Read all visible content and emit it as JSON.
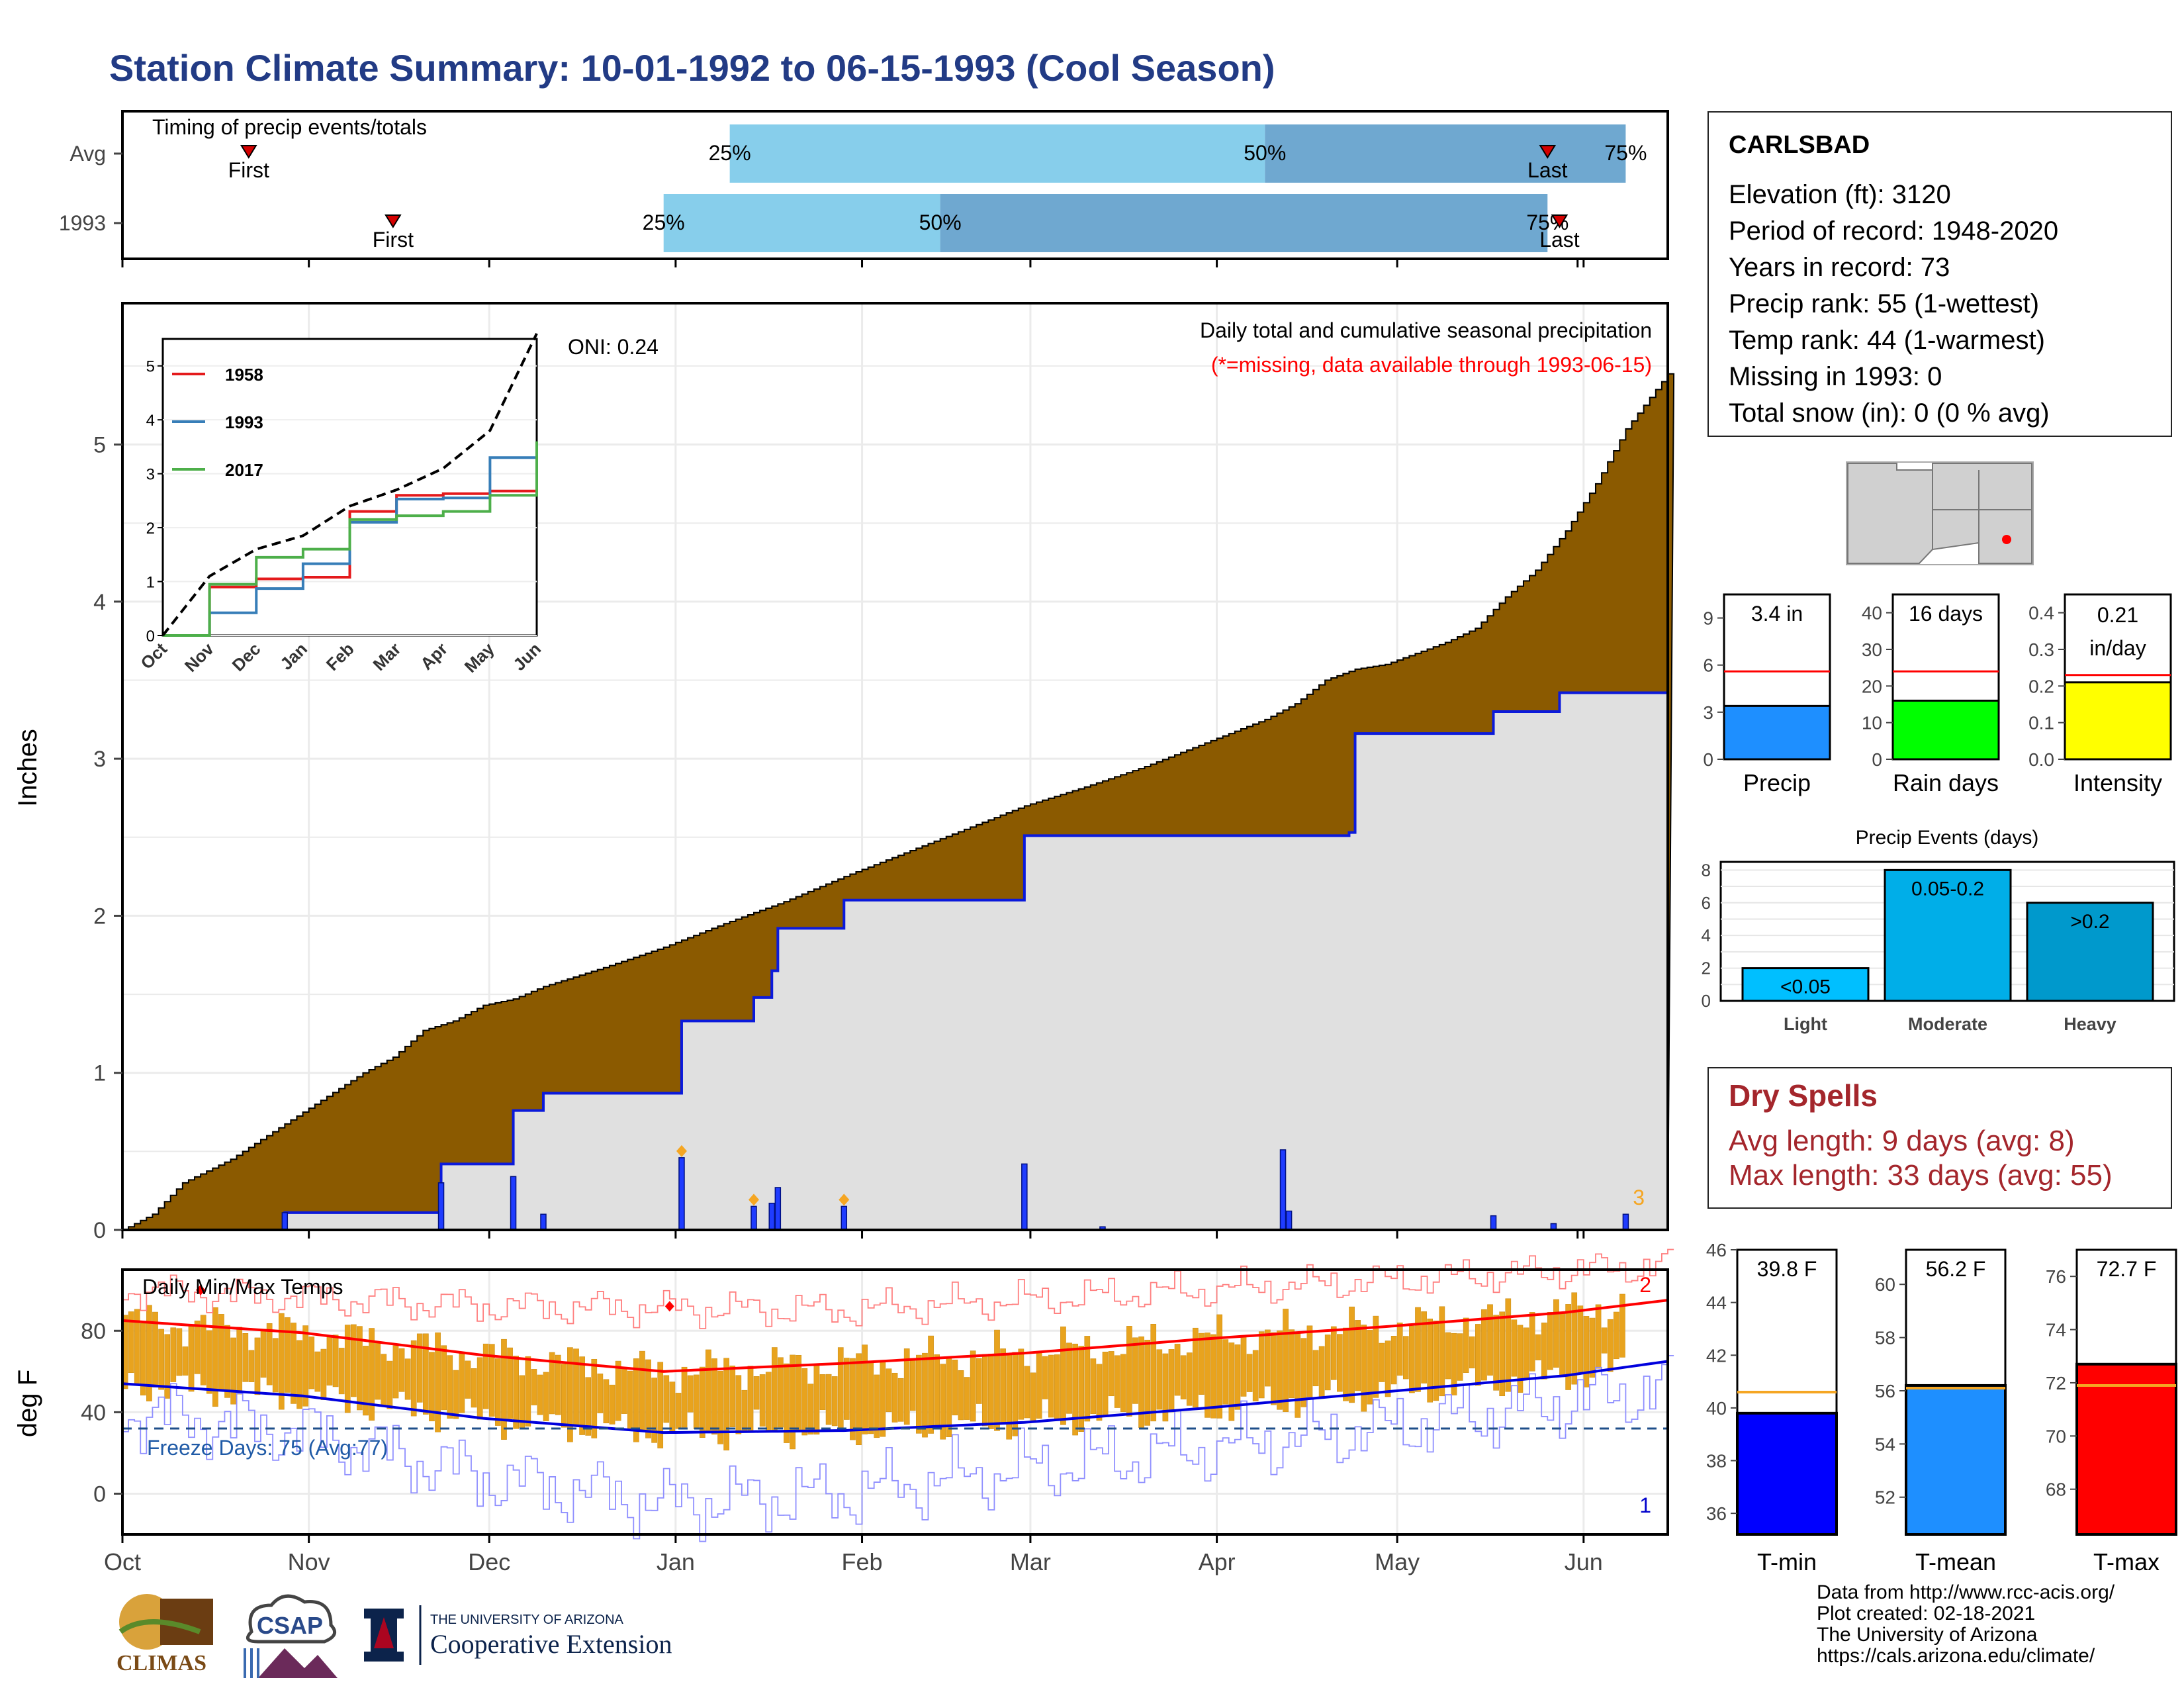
{
  "title": "Station Climate Summary: 10-01-1992 to 06-15-1993 (Cool Season)",
  "timing": {
    "label": "Timing of precip events/totals",
    "rows": [
      {
        "name": "Avg",
        "first_label": "First",
        "last_label": "Last",
        "first_day": 21,
        "last_day": 237,
        "p25_day": 101,
        "p50_day": 190,
        "p75_day": 250
      },
      {
        "name": "1993",
        "first_label": "First",
        "last_label": "Last",
        "first_day": 45,
        "last_day": 239,
        "p25_day": 90,
        "p50_day": 136,
        "p75_day": 237
      }
    ],
    "pct_labels": [
      "25%",
      "50%",
      "75%"
    ]
  },
  "station": {
    "name": "CARLSBAD",
    "lines": [
      "Elevation (ft): 3120",
      "Period of record: 1948-2020",
      "Years in record: 73",
      "Precip rank: 55 (1-wettest)",
      "Temp rank: 44 (1-warmest)",
      "Missing in 1993: 0",
      "Total snow (in): 0 (0 % avg)"
    ]
  },
  "precip_chart": {
    "ylabel": "Inches",
    "oni": "ONI: 0.24",
    "annotation1": "Daily total and cumulative seasonal precipitation",
    "annotation2": "(*=missing, data available through 1993-06-15)",
    "corner_count": "3",
    "yticks": [
      "0",
      "1",
      "2",
      "3",
      "4",
      "5"
    ],
    "colors": {
      "avg_fill": "#8b5a00",
      "season_fill": "#e0e0e0",
      "season_line": "#0b1adb",
      "daily_bar": "#1f3cff",
      "marker": "#f5a623"
    }
  },
  "chart_data": [
    {
      "type": "area",
      "title": "Daily total and cumulative seasonal precipitation",
      "ylabel": "Inches",
      "ylim": [
        0,
        5.9
      ],
      "x_unit": "day of season (0 = Oct 1)",
      "series": [
        {
          "name": "avg_cumulative",
          "x": [
            0,
            5,
            10,
            18,
            30,
            40,
            45,
            50,
            55,
            60,
            65,
            70,
            80,
            90,
            100,
            110,
            120,
            130,
            140,
            150,
            160,
            170,
            180,
            190,
            195,
            200,
            205,
            210,
            220,
            225,
            230,
            235,
            240,
            245,
            250,
            257
          ],
          "values": [
            0,
            0.1,
            0.3,
            0.45,
            0.75,
            1.0,
            1.1,
            1.27,
            1.33,
            1.43,
            1.47,
            1.55,
            1.67,
            1.8,
            1.95,
            2.09,
            2.25,
            2.4,
            2.55,
            2.7,
            2.82,
            2.95,
            3.1,
            3.25,
            3.35,
            3.5,
            3.57,
            3.6,
            3.74,
            3.83,
            4.03,
            4.2,
            4.45,
            4.75,
            5.1,
            5.45
          ]
        },
        {
          "name": "1993_cumulative",
          "x": [
            0,
            27,
            53,
            65,
            70,
            93,
            105,
            108,
            109,
            120,
            150,
            204,
            205,
            228,
            239,
            257
          ],
          "values": [
            0,
            0.11,
            0.42,
            0.76,
            0.87,
            1.33,
            1.48,
            1.65,
            1.92,
            2.1,
            2.51,
            2.53,
            3.16,
            3.3,
            3.42,
            3.42
          ]
        },
        {
          "name": "1993_daily",
          "x": [
            27,
            53,
            65,
            70,
            93,
            105,
            108,
            109,
            120,
            150,
            163,
            193,
            194,
            228,
            238,
            250
          ],
          "values": [
            0.11,
            0.3,
            0.34,
            0.1,
            0.46,
            0.15,
            0.17,
            0.27,
            0.15,
            0.42,
            0.02,
            0.51,
            0.12,
            0.09,
            0.04,
            0.1
          ]
        }
      ]
    },
    {
      "type": "line",
      "title": "",
      "series": [
        {
          "name": "1958",
          "x": [
            0,
            1,
            2,
            3,
            4,
            5,
            6,
            7,
            8
          ],
          "values": [
            0,
            0.9,
            1.05,
            1.08,
            2.3,
            2.6,
            2.63,
            2.68,
            2.8
          ]
        },
        {
          "name": "1993",
          "x": [
            0,
            1,
            2,
            3,
            4,
            5,
            6,
            7,
            8
          ],
          "values": [
            0,
            0.42,
            0.87,
            1.33,
            2.1,
            2.53,
            2.55,
            3.3,
            3.42
          ]
        },
        {
          "name": "2017",
          "x": [
            0,
            1,
            2,
            3,
            4,
            5,
            6,
            7,
            8
          ],
          "values": [
            0,
            0.95,
            1.45,
            1.6,
            2.15,
            2.22,
            2.3,
            2.6,
            3.6
          ]
        },
        {
          "name": "avg",
          "x": [
            0,
            1,
            2,
            3,
            4,
            5,
            6,
            7,
            8
          ],
          "values": [
            0,
            1.1,
            1.6,
            1.85,
            2.4,
            2.7,
            3.1,
            3.8,
            5.6
          ]
        }
      ],
      "categories": [
        "Oct",
        "Nov",
        "Dec",
        "Jan",
        "Feb",
        "Mar",
        "Apr",
        "May",
        "Jun"
      ],
      "ylim": [
        0,
        5.5
      ]
    },
    {
      "type": "bar",
      "title": "",
      "categories": [
        "Precip",
        "Rain days",
        "Intensity"
      ],
      "values": [
        3.4,
        16,
        0.21
      ],
      "averages": [
        5.6,
        24,
        0.23
      ],
      "labels": [
        "3.4 in",
        "16 days",
        "0.21 in/day"
      ]
    },
    {
      "type": "bar",
      "title": "Precip Events (days)",
      "categories": [
        "Light",
        "Moderate",
        "Heavy"
      ],
      "values": [
        2,
        8,
        6
      ],
      "bar_labels": [
        "<0.05",
        "0.05-0.2",
        ">0.2"
      ],
      "ylim": [
        0,
        8.5
      ]
    },
    {
      "type": "bar",
      "title": "",
      "categories": [
        "T-min",
        "T-mean",
        "T-max"
      ],
      "values": [
        39.8,
        56.2,
        72.7
      ],
      "averages": [
        40.6,
        56.1,
        71.9
      ],
      "labels": [
        "39.8 F",
        "56.2 F",
        "72.7 F"
      ]
    },
    {
      "type": "line",
      "title": "Daily Min/Max Temps",
      "ylabel": "deg F",
      "ylim": [
        -20,
        110
      ],
      "x_unit": "day of season (0 = Oct 1)",
      "freeze_line": 32,
      "series": [
        {
          "name": "avg_max",
          "x": [
            0,
            30,
            60,
            90,
            120,
            150,
            180,
            210,
            240,
            257
          ],
          "values": [
            85,
            79,
            68,
            60,
            64,
            69,
            76,
            82,
            89,
            95
          ]
        },
        {
          "name": "avg_min",
          "x": [
            0,
            30,
            60,
            90,
            120,
            150,
            180,
            210,
            240,
            257
          ],
          "values": [
            54,
            48,
            37,
            30,
            31,
            35,
            42,
            50,
            58,
            65
          ]
        },
        {
          "name": "record_max",
          "x": [
            0,
            60,
            120,
            180,
            257
          ],
          "values": [
            100,
            92,
            90,
            100,
            112
          ]
        },
        {
          "name": "record_min",
          "x": [
            0,
            30,
            60,
            90,
            120,
            150,
            180,
            210,
            257
          ],
          "values": [
            40,
            30,
            8,
            -5,
            0,
            12,
            22,
            32,
            52
          ]
        }
      ]
    }
  ],
  "inset": {
    "yticks": [
      "0",
      "1",
      "2",
      "3",
      "4",
      "5"
    ],
    "xticks": [
      "Oct",
      "Nov",
      "Dec",
      "Jan",
      "Feb",
      "Mar",
      "Apr",
      "May",
      "Jun"
    ],
    "legend": [
      {
        "label": "1958",
        "color": "#e41a1c"
      },
      {
        "label": "1993",
        "color": "#377eb8"
      },
      {
        "label": "2017",
        "color": "#4daf4a"
      }
    ]
  },
  "summary_bars": [
    {
      "xlabel": "Precip",
      "label": "3.4 in",
      "color": "#1e8fff",
      "yticks": [
        "0",
        "3",
        "6",
        "9"
      ]
    },
    {
      "xlabel": "Rain days",
      "label": "16 days",
      "color": "#00ff00",
      "yticks": [
        "0",
        "10",
        "20",
        "30",
        "40"
      ]
    },
    {
      "xlabel": "Intensity",
      "label1": "0.21",
      "label2": "in/day",
      "color": "#ffff00",
      "yticks": [
        "0.0",
        "0.1",
        "0.2",
        "0.3",
        "0.4"
      ]
    }
  ],
  "events": {
    "title": "Precip Events (days)",
    "yticks": [
      "0",
      "2",
      "4",
      "6",
      "8"
    ],
    "categories": [
      "Light",
      "Moderate",
      "Heavy"
    ],
    "bar_labels": [
      "<0.05",
      "0.05-0.2",
      ">0.2"
    ],
    "colors": [
      "#00bfff",
      "#00aee8",
      "#0099cc"
    ]
  },
  "dry_spells": {
    "heading": "Dry Spells",
    "avg": "Avg length: 9 days (avg: 8)",
    "max": "Max length: 33 days (avg: 55)"
  },
  "temp_chart": {
    "label": "Daily Min/Max Temps",
    "ylabel": "deg F",
    "yticks": [
      "0",
      "40",
      "80"
    ],
    "freeze": "Freeze Days: 75 (Avg:77)",
    "count_top": "2",
    "count_bottom": "1",
    "months": [
      "Oct",
      "Nov",
      "Dec",
      "Jan",
      "Feb",
      "Mar",
      "Apr",
      "May",
      "Jun"
    ]
  },
  "temp_bars": [
    {
      "xlabel": "T-min",
      "label": "39.8 F",
      "color": "#0000ff",
      "yticks": [
        "36",
        "38",
        "40",
        "42",
        "44",
        "46"
      ]
    },
    {
      "xlabel": "T-mean",
      "label": "56.2 F",
      "color": "#1e8fff",
      "yticks": [
        "52",
        "54",
        "56",
        "58",
        "60"
      ]
    },
    {
      "xlabel": "T-max",
      "label": "72.7 F",
      "color": "#ff0000",
      "yticks": [
        "68",
        "70",
        "72",
        "74",
        "76"
      ]
    }
  ],
  "credits": [
    "Data from http://www.rcc-acis.org/",
    "Plot created: 02-18-2021",
    "The University of Arizona",
    "https://cals.arizona.edu/climate/"
  ],
  "logos": {
    "climas": "CLIMAS",
    "csap": "CSAP",
    "ua_small": "THE UNIVERSITY OF ARIZONA",
    "ua_big": "Cooperative Extension"
  }
}
